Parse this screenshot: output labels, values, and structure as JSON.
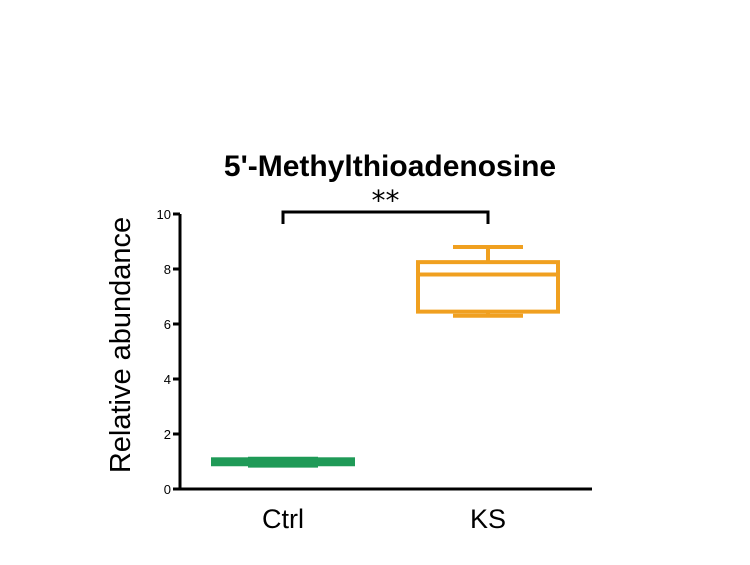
{
  "chart_data": {
    "type": "box",
    "title": "5'-Methylthioadenosine",
    "ylabel": "Relative abundance",
    "xlabel": "",
    "ylim": [
      0,
      10
    ],
    "yticks": [
      "0",
      "2",
      "4",
      "6",
      "8",
      "10"
    ],
    "categories": [
      "Ctrl",
      "KS"
    ],
    "boxes": [
      {
        "name": "Ctrl",
        "min": 0.85,
        "q1": 0.9,
        "median": 1.0,
        "q3": 1.08,
        "max": 1.1,
        "color": "#1f9a57"
      },
      {
        "name": "KS",
        "min": 6.3,
        "q1": 6.45,
        "median": 7.8,
        "q3": 8.25,
        "max": 8.8,
        "color": "#f0a020"
      }
    ],
    "significance": {
      "label": "**",
      "from": "Ctrl",
      "to": "KS"
    },
    "grid": false,
    "legend": "none"
  }
}
